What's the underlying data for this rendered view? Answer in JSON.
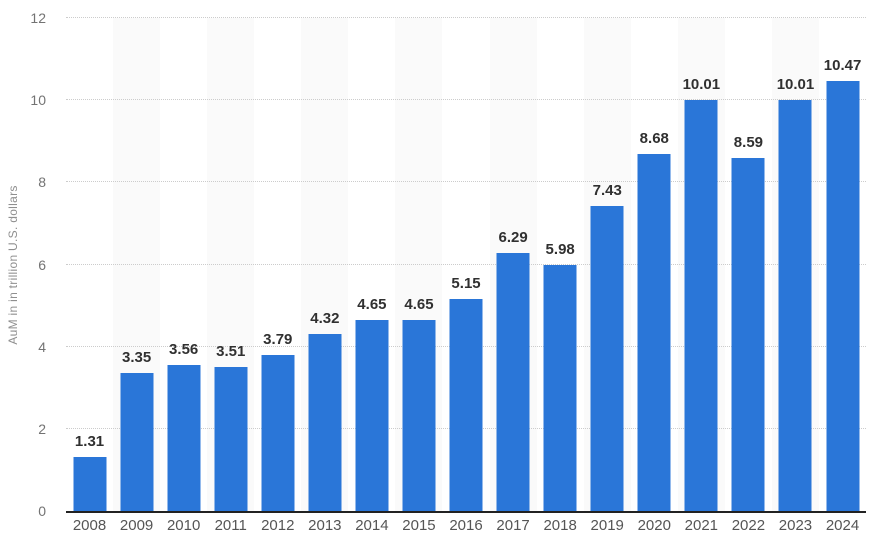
{
  "chart_data": {
    "type": "bar",
    "title": "",
    "categories": [
      "2008",
      "2009",
      "2010",
      "2011",
      "2012",
      "2013",
      "2014",
      "2015",
      "2016",
      "2017",
      "2018",
      "2019",
      "2020",
      "2021",
      "2022",
      "2023",
      "2024"
    ],
    "values": [
      1.31,
      3.35,
      3.56,
      3.51,
      3.79,
      4.32,
      4.65,
      4.65,
      5.15,
      6.29,
      5.98,
      7.43,
      8.68,
      10.01,
      8.59,
      10.01,
      10.47
    ],
    "xlabel": "",
    "ylabel": "AuM in in trillion U.S. dollars",
    "ylim": [
      0,
      12
    ],
    "y_ticks": [
      0,
      2,
      4,
      6,
      8,
      10,
      12
    ],
    "grid": "horizontal-dotted",
    "legend": "none",
    "alternating_column_bands": "odd-index-categories",
    "value_labels": "above-bars"
  },
  "colors": {
    "bar": "#2a76d8",
    "column_band": "#fafafa",
    "gridline": "#cccccc",
    "baseline": "#222222",
    "tick_text": "#737373",
    "year_text": "#555555",
    "value_text": "#303030",
    "ylabel_text": "#8f8f8f",
    "background": "#ffffff"
  }
}
